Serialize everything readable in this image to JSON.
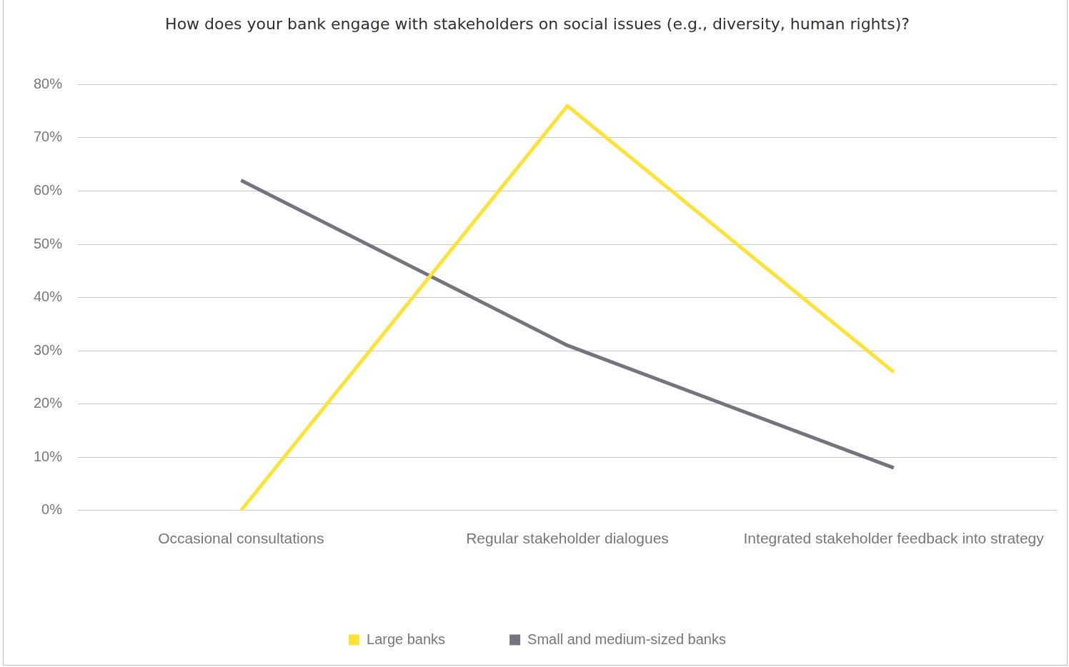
{
  "chart_data": {
    "type": "line",
    "title": "How does your bank engage with stakeholders on social issues (e.g., diversity, human rights)?",
    "categories": [
      "Occasional consultations",
      "Regular stakeholder dialogues",
      "Integrated stakeholder feedback into strategy"
    ],
    "series": [
      {
        "name": "Large banks",
        "color": "#ffe236",
        "values": [
          0,
          76,
          26
        ]
      },
      {
        "name": "Small and medium-sized banks",
        "color": "#747480",
        "values": [
          62,
          31,
          8
        ]
      }
    ],
    "ylim": [
      0,
      80
    ],
    "yticks": [
      {
        "value": 0,
        "label": "0%"
      },
      {
        "value": 10,
        "label": "10%"
      },
      {
        "value": 20,
        "label": "20%"
      },
      {
        "value": 30,
        "label": "30%"
      },
      {
        "value": 40,
        "label": "40%"
      },
      {
        "value": 50,
        "label": "50%"
      },
      {
        "value": 60,
        "label": "60%"
      },
      {
        "value": 70,
        "label": "70%"
      },
      {
        "value": 80,
        "label": "80%"
      }
    ],
    "grid": "y",
    "legend": "bottom",
    "marker": "none",
    "line_style": "solid"
  }
}
